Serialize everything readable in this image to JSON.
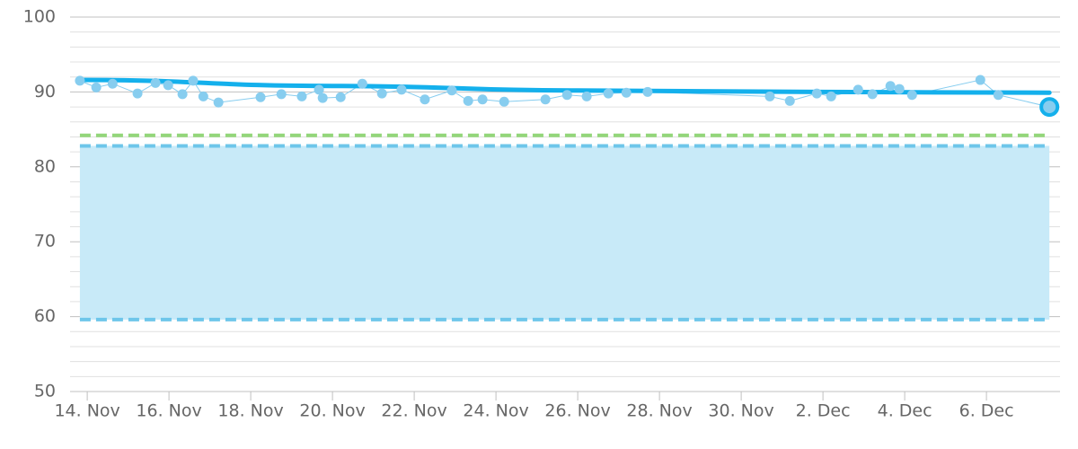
{
  "chart_data": {
    "type": "scatter",
    "ylim": [
      50,
      100
    ],
    "yticks": [
      50,
      60,
      70,
      80,
      90,
      100
    ],
    "minor_yticks": [
      52,
      54,
      56,
      58,
      62,
      64,
      66,
      68,
      72,
      74,
      76,
      78,
      82,
      84,
      86,
      88,
      92,
      94,
      96,
      98
    ],
    "xlim": [
      13.58,
      37.8
    ],
    "xticks": [
      {
        "value": 14,
        "label": "14. Nov"
      },
      {
        "value": 16,
        "label": "16. Nov"
      },
      {
        "value": 18,
        "label": "18. Nov"
      },
      {
        "value": 20,
        "label": "20. Nov"
      },
      {
        "value": 22,
        "label": "22. Nov"
      },
      {
        "value": 24,
        "label": "24. Nov"
      },
      {
        "value": 26,
        "label": "26. Nov"
      },
      {
        "value": 28,
        "label": "28. Nov"
      },
      {
        "value": 30,
        "label": "30. Nov"
      },
      {
        "value": 32,
        "label": "2. Dec"
      },
      {
        "value": 34,
        "label": "4. Dec"
      },
      {
        "value": 36,
        "label": "6. Dec"
      }
    ],
    "grid": true,
    "bands": [
      {
        "from": 59.6,
        "to": 82.8,
        "color": "#c8eaf8",
        "xlim": [
          13.82,
          37.54
        ]
      }
    ],
    "plot_lines": [
      {
        "value": 84.2,
        "color": "#93d67a"
      },
      {
        "value": 82.8,
        "color": "#6ec6ea"
      },
      {
        "value": 59.6,
        "color": "#6ec6ea"
      }
    ],
    "series": [
      {
        "color": "#87cdef",
        "x": [
          13.82,
          14.22,
          14.62,
          15.23,
          15.67,
          15.98,
          16.33,
          16.59,
          16.84,
          17.21,
          18.24,
          18.75,
          19.25,
          19.67,
          19.76,
          20.2,
          20.73,
          21.21,
          21.69,
          22.26,
          22.92,
          23.32,
          23.67,
          24.2,
          25.21,
          25.74,
          26.22,
          26.75,
          27.19,
          27.71,
          30.7,
          31.19,
          31.85,
          32.2,
          32.86,
          33.21,
          33.65,
          33.87,
          34.18,
          35.85,
          36.29,
          37.54
        ],
        "values": [
          91.5,
          90.6,
          91.1,
          89.8,
          91.2,
          90.9,
          89.7,
          91.5,
          89.4,
          88.6,
          89.3,
          89.7,
          89.4,
          90.3,
          89.2,
          89.3,
          91.1,
          89.8,
          90.3,
          89.0,
          90.2,
          88.8,
          89.0,
          88.7,
          89.0,
          89.6,
          89.4,
          89.8,
          89.9,
          90.0,
          89.4,
          88.8,
          89.8,
          89.4,
          90.3,
          89.7,
          90.8,
          90.4,
          89.6,
          91.6,
          89.6,
          88.0
        ]
      }
    ],
    "trend": {
      "color": "#14b0ec",
      "x": [
        13.82,
        20,
        26,
        32,
        37.54
      ],
      "values": [
        91.6,
        90.8,
        90.2,
        90.0,
        89.9
      ]
    }
  }
}
